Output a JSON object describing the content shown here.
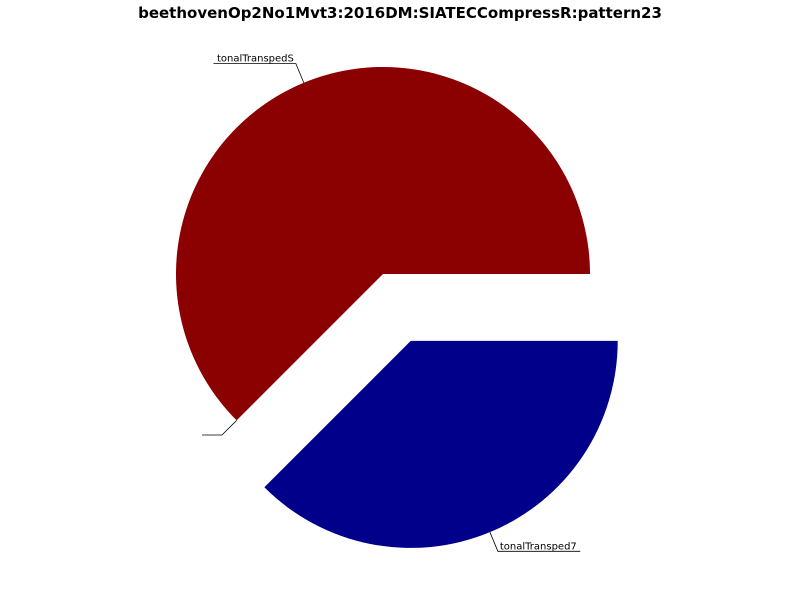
{
  "chart_data": {
    "type": "pie",
    "title": "beethovenOp2No1Mvt3:2016DM:SIATECCompressR:pattern23",
    "start_angle_deg": 0,
    "direction": "counterclockwise",
    "slices": [
      {
        "label": "tonalTranspedS",
        "value": 62.5,
        "color": "#8b0000",
        "explode": 0
      },
      {
        "label": "",
        "value": 0,
        "color": "#ffffff",
        "explode": 0
      },
      {
        "label": "tonalTransped7",
        "value": 37.5,
        "color": "#00008b",
        "explode": 0.35
      }
    ],
    "legend": "none"
  }
}
